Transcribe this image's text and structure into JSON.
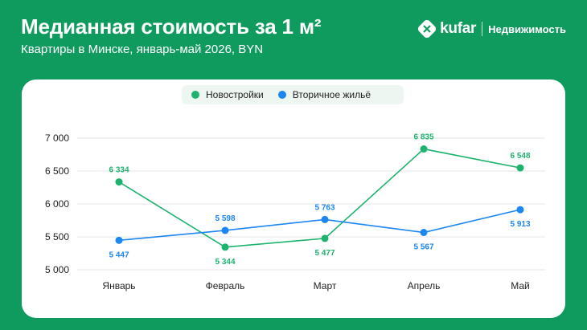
{
  "header": {
    "title": "Медианная стоимость за 1 м²",
    "subtitle": "Квартиры в Минске, январь-май 2026, BYN"
  },
  "brand": {
    "name": "kufar",
    "section": "Недвижимость"
  },
  "colors": {
    "background": "#0f9b5e",
    "series_new": "#1db36f",
    "series_secondary": "#1c86f2"
  },
  "chart_data": {
    "type": "line",
    "categories": [
      "Январь",
      "Февраль",
      "Март",
      "Апрель",
      "Май"
    ],
    "series": [
      {
        "name": "Новостройки",
        "color": "#1db36f",
        "values": [
          6334,
          5344,
          5477,
          6835,
          6548
        ],
        "labels": [
          "6 334",
          "5 344",
          "5 477",
          "6 835",
          "6 548"
        ]
      },
      {
        "name": "Вторичное жильё",
        "color": "#1c86f2",
        "values": [
          5447,
          5598,
          5763,
          5567,
          5913
        ],
        "labels": [
          "5 447",
          "5 598",
          "5 763",
          "5 567",
          "5 913"
        ]
      }
    ],
    "yticks": [
      5000,
      5500,
      6000,
      6500,
      7000
    ],
    "ytick_labels": [
      "5 000",
      "5 500",
      "6 000",
      "6 500",
      "7 000"
    ],
    "ylim": [
      5000,
      7000
    ],
    "grid": true,
    "legend_position": "top-center"
  }
}
